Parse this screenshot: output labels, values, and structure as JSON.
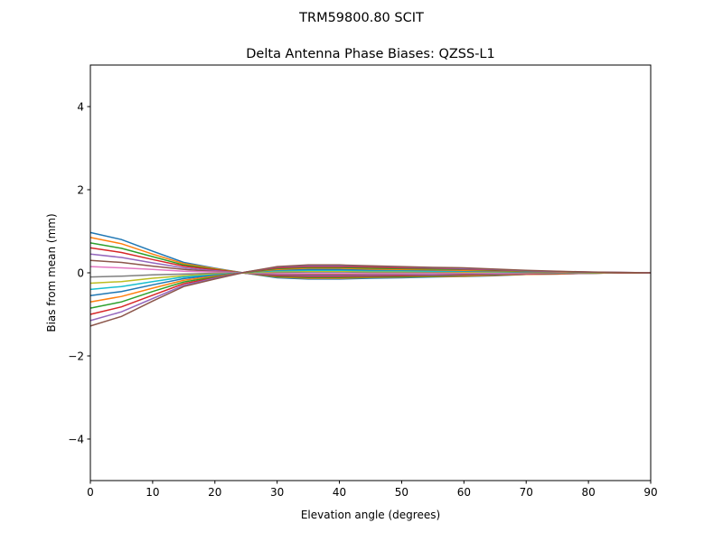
{
  "chart_data": {
    "type": "line",
    "suptitle": "TRM59800.80     SCIT",
    "title": "Delta Antenna Phase Biases: QZSS-L1",
    "xlabel": "Elevation angle (degrees)",
    "ylabel": "Bias from mean (mm)",
    "xlim": [
      0,
      90
    ],
    "ylim": [
      -5,
      5
    ],
    "xticks": [
      0,
      10,
      20,
      30,
      40,
      50,
      60,
      70,
      80,
      90
    ],
    "yticks": [
      -4,
      -2,
      0,
      2,
      4
    ],
    "ytick_labels": [
      "−4",
      "−2",
      "0",
      "2",
      "4"
    ],
    "grid": false,
    "colors": [
      "#1f77b4",
      "#ff7f0e",
      "#2ca02c",
      "#d62728",
      "#9467bd",
      "#8c564b",
      "#e377c2",
      "#7f7f7f",
      "#bcbd22",
      "#17becf"
    ],
    "x": [
      0,
      5,
      10,
      15,
      20,
      25,
      30,
      35,
      40,
      45,
      50,
      55,
      60,
      65,
      70,
      75,
      80,
      85,
      90
    ],
    "series": [
      {
        "values": [
          0.97,
          0.8,
          0.52,
          0.25,
          0.11,
          -0.01,
          -0.12,
          -0.15,
          -0.15,
          -0.13,
          -0.12,
          -0.1,
          -0.09,
          -0.07,
          -0.04,
          -0.03,
          -0.01,
          0,
          0
        ]
      },
      {
        "values": [
          0.85,
          0.7,
          0.45,
          0.22,
          0.1,
          -0.01,
          -0.1,
          -0.13,
          -0.13,
          -0.11,
          -0.1,
          -0.09,
          -0.08,
          -0.06,
          -0.04,
          -0.03,
          -0.01,
          0,
          0
        ]
      },
      {
        "values": [
          0.72,
          0.59,
          0.39,
          0.19,
          0.08,
          -0.01,
          -0.09,
          -0.11,
          -0.11,
          -0.1,
          -0.09,
          -0.08,
          -0.06,
          -0.05,
          -0.03,
          -0.02,
          -0.01,
          0,
          0
        ]
      },
      {
        "values": [
          0.6,
          0.49,
          0.32,
          0.16,
          0.07,
          -0.01,
          -0.07,
          -0.09,
          -0.09,
          -0.08,
          -0.07,
          -0.06,
          -0.05,
          -0.04,
          -0.03,
          -0.02,
          -0.01,
          0,
          0
        ]
      },
      {
        "values": [
          0.45,
          0.37,
          0.24,
          0.12,
          0.05,
          -0.01,
          -0.05,
          -0.07,
          -0.07,
          -0.06,
          -0.05,
          -0.05,
          -0.04,
          -0.03,
          -0.02,
          -0.01,
          -0.01,
          0,
          0
        ]
      },
      {
        "values": [
          0.3,
          0.25,
          0.16,
          0.08,
          0.03,
          0,
          -0.04,
          -0.05,
          -0.05,
          -0.04,
          -0.04,
          -0.03,
          -0.03,
          -0.02,
          -0.01,
          -0.01,
          0,
          0,
          0
        ]
      },
      {
        "values": [
          0.15,
          0.12,
          0.08,
          0.04,
          0.02,
          0,
          -0.02,
          -0.02,
          -0.02,
          -0.02,
          -0.02,
          -0.02,
          -0.01,
          -0.01,
          -0.01,
          0,
          0,
          0,
          0
        ]
      },
      {
        "values": [
          -0.1,
          -0.08,
          -0.05,
          -0.03,
          -0.01,
          0,
          0.01,
          0.02,
          0.02,
          0.01,
          0.01,
          0.01,
          0.01,
          0.01,
          0,
          0,
          0,
          0,
          0
        ]
      },
      {
        "values": [
          -0.25,
          -0.21,
          -0.13,
          -0.07,
          -0.03,
          0,
          0.03,
          0.04,
          0.04,
          0.03,
          0.03,
          0.03,
          0.02,
          0.02,
          0.01,
          0.01,
          0,
          0,
          0
        ]
      },
      {
        "values": [
          -0.4,
          -0.33,
          -0.21,
          -0.1,
          -0.05,
          0.01,
          0.05,
          0.06,
          0.06,
          0.05,
          0.05,
          0.04,
          0.04,
          0.03,
          0.02,
          0.01,
          0.01,
          0,
          0
        ]
      },
      {
        "values": [
          -0.55,
          -0.45,
          -0.29,
          -0.14,
          -0.06,
          0.01,
          0.07,
          0.08,
          0.08,
          0.07,
          0.07,
          0.06,
          0.05,
          0.04,
          0.02,
          0.02,
          0.01,
          0,
          0
        ]
      },
      {
        "values": [
          -0.7,
          -0.57,
          -0.37,
          -0.18,
          -0.08,
          0.01,
          0.08,
          0.11,
          0.11,
          0.09,
          0.08,
          0.07,
          0.06,
          0.05,
          0.03,
          0.02,
          0.01,
          0,
          0
        ]
      },
      {
        "values": [
          -0.85,
          -0.7,
          -0.45,
          -0.22,
          -0.1,
          0.01,
          0.1,
          0.13,
          0.13,
          0.11,
          0.1,
          0.09,
          0.08,
          0.06,
          0.04,
          0.03,
          0.01,
          0,
          0
        ]
      },
      {
        "values": [
          -1.0,
          -0.82,
          -0.54,
          -0.26,
          -0.12,
          0.02,
          0.12,
          0.15,
          0.15,
          0.14,
          0.12,
          0.11,
          0.09,
          0.07,
          0.05,
          0.03,
          0.02,
          0,
          0
        ]
      },
      {
        "values": [
          -1.15,
          -0.94,
          -0.62,
          -0.3,
          -0.13,
          0.02,
          0.14,
          0.17,
          0.17,
          0.16,
          0.14,
          0.12,
          0.1,
          0.08,
          0.05,
          0.03,
          0.02,
          0.01,
          0
        ]
      },
      {
        "values": [
          -1.28,
          -1.05,
          -0.68,
          -0.33,
          -0.15,
          0.02,
          0.15,
          0.19,
          0.19,
          0.17,
          0.15,
          0.13,
          0.12,
          0.09,
          0.06,
          0.04,
          0.02,
          0.01,
          0
        ]
      }
    ]
  }
}
